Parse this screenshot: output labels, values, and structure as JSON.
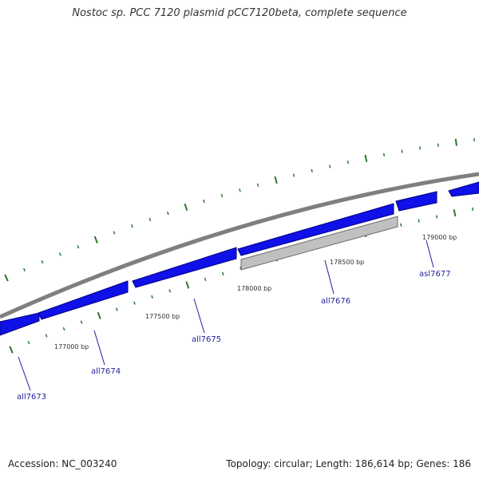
{
  "title": "Nostoc sp. PCC 7120 plasmid pCC7120beta, complete sequence",
  "accession": "Accession: NC_003240",
  "topology": "Topology: circular; Length: 186,614 bp; Genes: 186",
  "colors": {
    "gene_fill": "#1010e8",
    "gene_edge": "#000080",
    "selected_fill": "#c0c0c0",
    "backbone": "#7f7f7f",
    "tick": "#2a7a2a",
    "label": "#1f1f9c"
  },
  "position_labels": [
    "177000 bp",
    "177500 bp",
    "178000 bp",
    "178500 bp",
    "179000 bp"
  ],
  "genes": [
    {
      "name": "all7673",
      "strand": "minus"
    },
    {
      "name": "all7674",
      "strand": "minus"
    },
    {
      "name": "all7675",
      "strand": "minus"
    },
    {
      "name": "all7676",
      "strand": "minus",
      "selected": true
    },
    {
      "name": "asl7677",
      "strand": "minus"
    }
  ]
}
